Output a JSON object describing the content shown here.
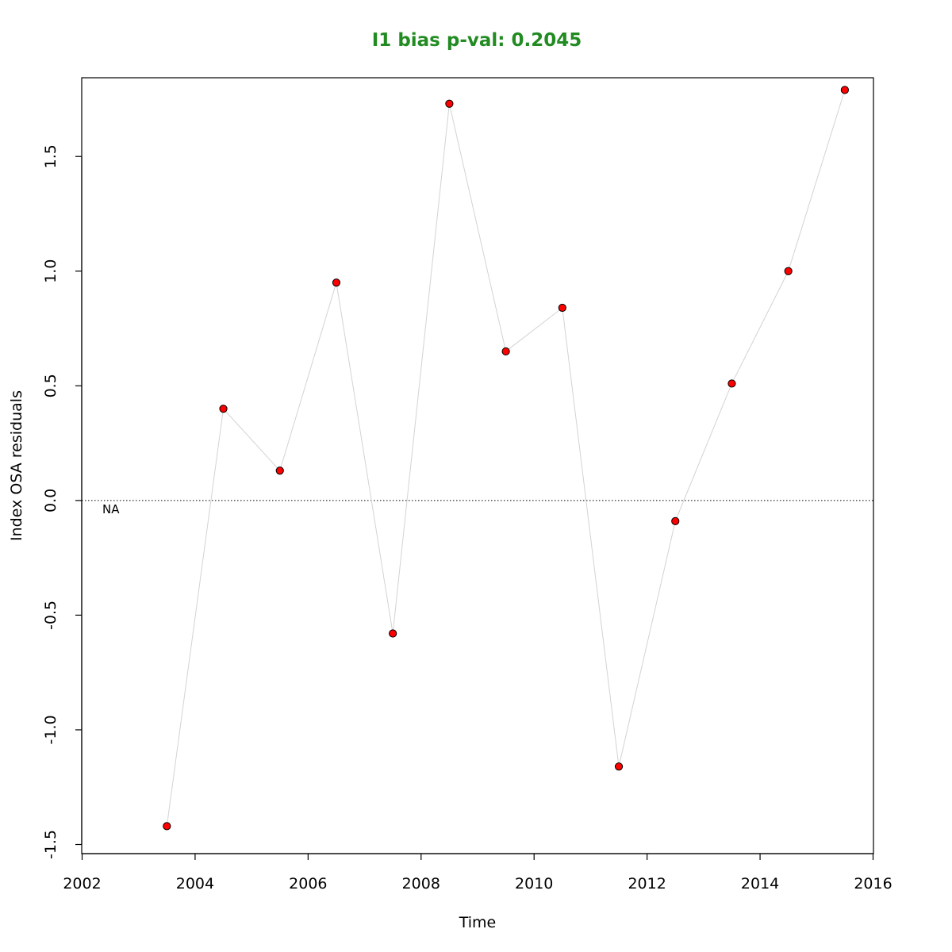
{
  "chart_data": {
    "type": "scatter",
    "title": "I1 bias p-val: 0.2045",
    "title_color": "#228B22",
    "xlabel": "Time",
    "ylabel": "Index OSA residuals",
    "xlim": [
      2002,
      2016
    ],
    "ylim": [
      -1.5,
      1.8
    ],
    "x_ticks": [
      2002,
      2004,
      2006,
      2008,
      2010,
      2012,
      2014,
      2016
    ],
    "x_tick_labels": [
      "2002",
      "2004",
      "2006",
      "2008",
      "2010",
      "2012",
      "2014",
      "2016"
    ],
    "y_ticks": [
      -1.5,
      -1.0,
      -0.5,
      0.0,
      0.5,
      1.0,
      1.5
    ],
    "y_tick_labels": [
      "-1.5",
      "-1.0",
      "-0.5",
      "0.0",
      "0.5",
      "1.0",
      "1.5"
    ],
    "grid": false,
    "reference_line": 0,
    "annotation": "NA",
    "point_color": "#ff0000",
    "line_color": "#d3d3d3",
    "series": [
      {
        "x": [
          2003.5,
          2004.5,
          2005.5,
          2006.5,
          2007.5,
          2008.5,
          2009.5,
          2010.5,
          2011.5,
          2012.5,
          2013.5,
          2014.5,
          2015.5
        ],
        "y": [
          -1.42,
          0.4,
          0.13,
          0.95,
          -0.58,
          1.73,
          0.65,
          0.84,
          -1.16,
          -0.09,
          0.51,
          1.0,
          1.79
        ]
      }
    ]
  }
}
